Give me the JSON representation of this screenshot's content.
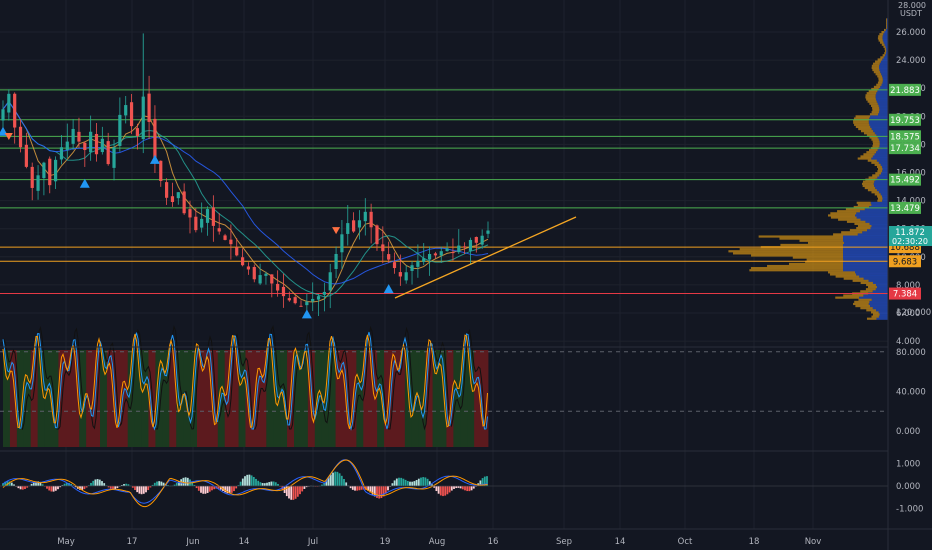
{
  "colors": {
    "background": "#131722",
    "grid": "#1e222d",
    "axis_text": "#b2b5be",
    "candle_up": "#26a69a",
    "candle_down": "#ef5350",
    "level_green": "#4caf50",
    "level_orange": "#f0a020",
    "level_red": "#e53945",
    "trendline": "#f5a623",
    "volume_profile_up": "#c58a16",
    "volume_profile_down": "#2962ff",
    "arrow_buy": "#2196f3",
    "arrow_sell": "#ff7043",
    "osc_bar_red": "#5c1a1e",
    "osc_bar_green": "#1b3a20"
  },
  "price_axis": {
    "currency": "USDT",
    "top_partial": "28.000",
    "ticks": [
      "26.000",
      "24.000",
      "22.000",
      "20.000",
      "18.000",
      "16.000",
      "14.000",
      "12.000",
      "10.000",
      "8.000",
      "6.000",
      "4.000"
    ]
  },
  "levels": [
    {
      "label": "21.883",
      "value": 21.883,
      "color": "green"
    },
    {
      "label": "19.753",
      "value": 19.753,
      "color": "green"
    },
    {
      "label": "18.575",
      "value": 18.575,
      "color": "green"
    },
    {
      "label": "17.734",
      "value": 17.734,
      "color": "green"
    },
    {
      "label": "15.492",
      "value": 15.492,
      "color": "green"
    },
    {
      "label": "13.479",
      "value": 13.479,
      "color": "green"
    },
    {
      "label": "10.688",
      "value": 10.688,
      "color": "orange"
    },
    {
      "label": "9.683",
      "value": 9.683,
      "color": "orange"
    },
    {
      "label": "7.384",
      "value": 7.384,
      "color": "red"
    }
  ],
  "current_price": {
    "label": "11.872",
    "countdown": "02:30:20",
    "value": 11.872
  },
  "oscillator_axis": {
    "ticks": [
      "120.000",
      "80.000",
      "40.000",
      "0.000"
    ],
    "dashed_levels": [
      80,
      20
    ]
  },
  "macd_axis": {
    "ticks": [
      "1.000",
      "0.000",
      "-1.000"
    ]
  },
  "time_axis": {
    "labels": [
      "May",
      "17",
      "Jun",
      "14",
      "Jul",
      "19",
      "Aug",
      "16",
      "Sep",
      "14",
      "Oct",
      "18",
      "Nov"
    ]
  },
  "chart_data": {
    "type": "candlestick",
    "ylim": [
      4,
      28
    ],
    "series_close": [
      20.5,
      21.6,
      19.2,
      17.8,
      16.4,
      14.9,
      15.8,
      16.7,
      15.1,
      16.9,
      17.8,
      18.2,
      19.1,
      18.2,
      17.6,
      18.9,
      17.3,
      18.4,
      16.6,
      17.8,
      20.1,
      20.8,
      19.3,
      18.6,
      21.4,
      19.6,
      16.8,
      15.4,
      14.2,
      13.9,
      14.6,
      13.1,
      12.8,
      11.9,
      12.7,
      13.4,
      12.2,
      11.8,
      11.2,
      10.9,
      10.1,
      9.4,
      9.1,
      8.4,
      8.7,
      8.8,
      8.1,
      7.6,
      7.2,
      6.9,
      6.7,
      6.5,
      6.8,
      7.0,
      7.2,
      7.5,
      8.9,
      10.2,
      11.6,
      12.4,
      11.8,
      12.6,
      13.2,
      12.1,
      10.9,
      10.4,
      9.8,
      9.2,
      8.6,
      8.9,
      9.4,
      9.7,
      9.9,
      10.2,
      10.1,
      10.4,
      10.6,
      10.3,
      10.8,
      10.7,
      11.2,
      11.0,
      11.5,
      11.87
    ],
    "buy_signals": [
      {
        "i": 0,
        "price": 18.9
      },
      {
        "i": 14,
        "price": 15.2
      },
      {
        "i": 26,
        "price": 16.9
      },
      {
        "i": 52,
        "price": 5.9
      },
      {
        "i": 66,
        "price": 7.7
      }
    ],
    "sell_signals": [
      {
        "i": 1,
        "price": 18.6
      },
      {
        "i": 57,
        "price": 11.9
      }
    ]
  }
}
